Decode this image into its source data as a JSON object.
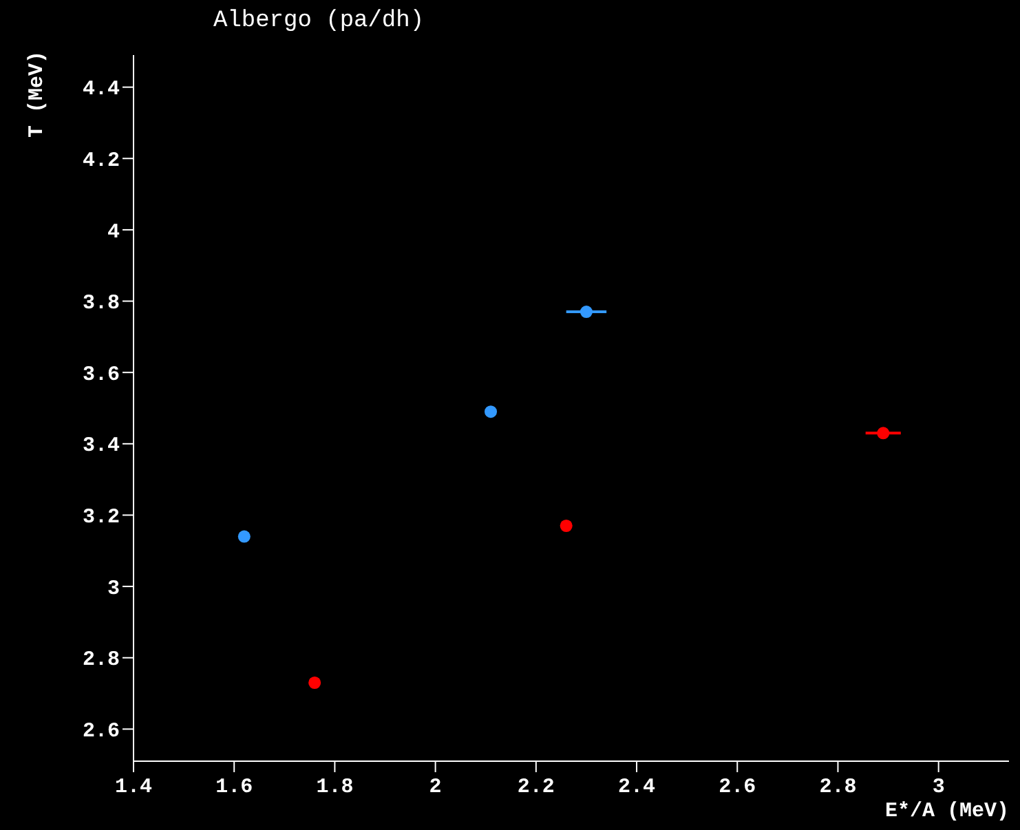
{
  "chart_data": {
    "type": "scatter",
    "title": "Albergo (pa/dh)",
    "xlabel": "E*/A (MeV)",
    "ylabel": "T (MeV)",
    "xlim": [
      1.4,
      3.14
    ],
    "xticks": [
      1.4,
      1.6,
      1.8,
      2,
      2.2,
      2.4,
      2.6,
      2.8,
      3
    ],
    "ylim": [
      2.51,
      4.49
    ],
    "yticks": [
      2.6,
      2.8,
      3,
      3.2,
      3.4,
      3.6,
      3.8,
      4,
      4.2,
      4.4
    ],
    "grid": false,
    "legend": false,
    "marker": "circle",
    "series": [
      {
        "color": "#3399ff",
        "x": [
          1.62,
          2.11,
          2.3
        ],
        "values": [
          3.14,
          3.49,
          3.77
        ],
        "xerrors": [
          null,
          null,
          0.04
        ]
      },
      {
        "color": "#ff0000",
        "x": [
          1.76,
          2.26,
          2.89
        ],
        "values": [
          2.73,
          3.17,
          3.43
        ],
        "xerrors": [
          null,
          null,
          0.035
        ]
      }
    ]
  }
}
